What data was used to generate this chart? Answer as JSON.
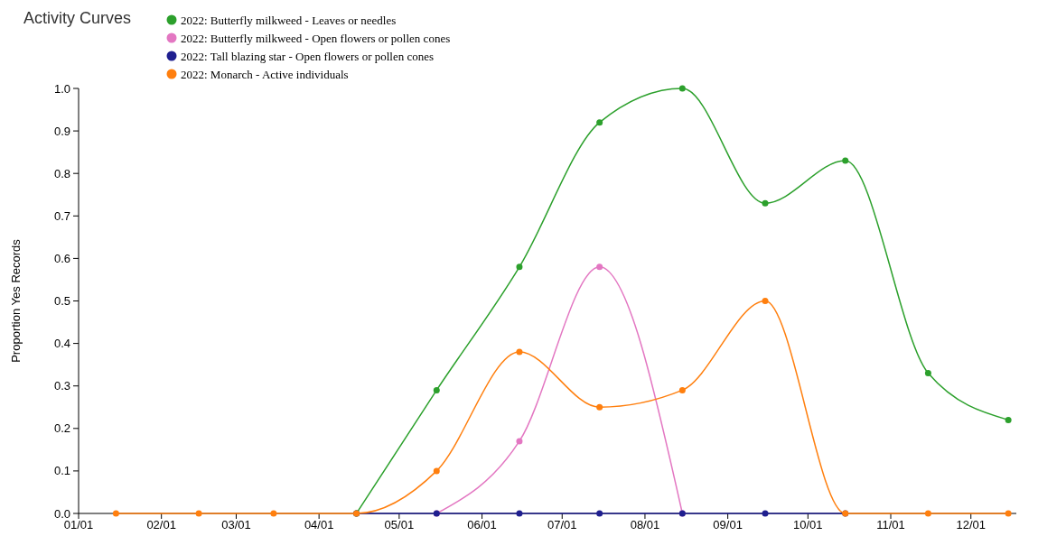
{
  "chart_data": {
    "type": "line",
    "title": "Activity Curves",
    "ylabel": "Proportion Yes Records",
    "x": [
      "--01-15",
      "--02-15",
      "--03-15",
      "--04-15",
      "--05-15",
      "--06-15",
      "--07-15",
      "--08-15",
      "--09-15",
      "--10-15",
      "--11-15",
      "--12-15"
    ],
    "series": [
      {
        "name": "2022: Butterfly milkweed - Leaves or needles",
        "color": "#2ca02c",
        "values": [
          null,
          null,
          null,
          0,
          0.29,
          0.58,
          0.92,
          1.0,
          0.73,
          0.83,
          0.33,
          0.22
        ]
      },
      {
        "name": "2022: Butterfly milkweed - Open flowers or pollen cones",
        "color": "#e377c2",
        "values": [
          null,
          null,
          null,
          null,
          0,
          0.17,
          0.58,
          0,
          null,
          null,
          null,
          null
        ]
      },
      {
        "name": "2022: Tall blazing star - Open flowers or pollen cones",
        "color": "#1f1f8f",
        "values": [
          null,
          null,
          null,
          0,
          0,
          0,
          0,
          0,
          0,
          0,
          null,
          null
        ]
      },
      {
        "name": "2022: Monarch - Active individuals",
        "color": "#ff7f0e",
        "values": [
          0,
          0,
          0,
          0,
          0.1,
          0.38,
          0.25,
          0.29,
          0.5,
          0,
          0,
          0
        ]
      }
    ],
    "xlim": [
      "--01-01",
      "--12-18"
    ],
    "xticks": [
      {
        "value": "--01-01",
        "label": "01/01"
      },
      {
        "value": "--02-01",
        "label": "02/01"
      },
      {
        "value": "--03-01",
        "label": "03/01"
      },
      {
        "value": "--04-01",
        "label": "04/01"
      },
      {
        "value": "--05-01",
        "label": "05/01"
      },
      {
        "value": "--06-01",
        "label": "06/01"
      },
      {
        "value": "--07-01",
        "label": "07/01"
      },
      {
        "value": "--08-01",
        "label": "08/01"
      },
      {
        "value": "--09-01",
        "label": "09/01"
      },
      {
        "value": "--10-01",
        "label": "10/01"
      },
      {
        "value": "--11-01",
        "label": "11/01"
      },
      {
        "value": "--12-01",
        "label": "12/01"
      }
    ],
    "ylim": [
      0,
      1
    ],
    "yticks": [
      {
        "value": 0,
        "label": "0.0"
      },
      0.1,
      0.2,
      0.3,
      0.4,
      0.5,
      0.6,
      0.7,
      0.8,
      0.9,
      {
        "value": 1,
        "label": "1.0"
      }
    ],
    "grid": false,
    "legend": "top",
    "marker": "circle",
    "line_style": "solid"
  }
}
